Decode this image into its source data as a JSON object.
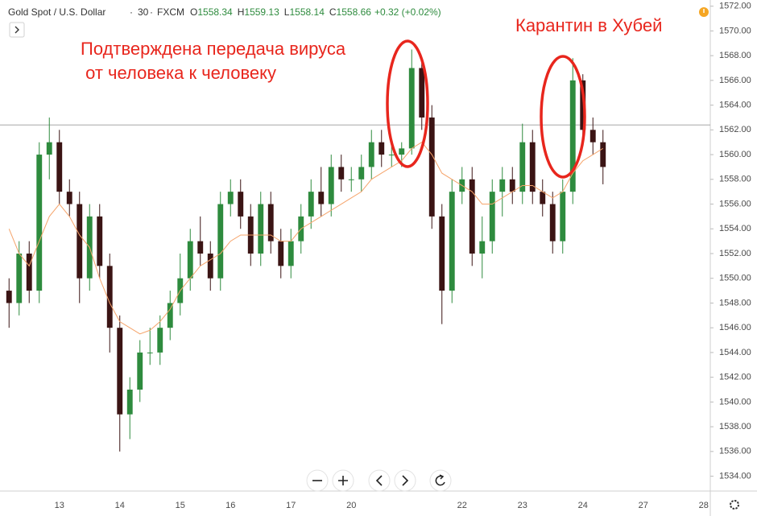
{
  "chart_data": {
    "type": "candlestick",
    "title": "Gold Spot / U.S. Dollar",
    "interval": "30",
    "source": "FXCM",
    "header_values": [
      {
        "key": "O",
        "value": 1558.34
      },
      {
        "key": "H",
        "value": 1559.13
      },
      {
        "key": "L",
        "value": 1558.14
      },
      {
        "key": "C",
        "value": 1558.66
      }
    ],
    "change": "+0.32 (+0.02%)",
    "annotations": [
      {
        "lines": [
          "Подтверждена передача вируса",
          " от человека к человеку"
        ],
        "color": "#e8261d"
      },
      {
        "lines": [
          "Карантин в Хубей"
        ],
        "color": "#e8261d"
      }
    ],
    "categories": [
      null,
      null,
      null,
      null,
      null,
      "13",
      null,
      null,
      null,
      null,
      null,
      "14",
      null,
      null,
      null,
      null,
      null,
      "15",
      null,
      null,
      null,
      null,
      "16",
      null,
      null,
      null,
      null,
      null,
      "17",
      null,
      null,
      null,
      null,
      null,
      "20",
      null,
      null,
      null,
      null,
      null,
      null,
      null,
      null,
      null,
      null,
      "22",
      null,
      null,
      null,
      null,
      null,
      "23",
      null,
      null,
      null,
      null,
      null,
      "24",
      null,
      null,
      null,
      null,
      null,
      "27",
      null,
      null,
      null,
      null,
      null,
      "28"
    ],
    "open": [
      1549,
      1548,
      1552,
      1549,
      1560,
      1561,
      1557,
      1556,
      1550,
      1555,
      1551,
      1546,
      1539,
      1541,
      1544,
      1544,
      1546,
      1548,
      1550,
      1553,
      1552,
      1550,
      1556,
      1557,
      1555,
      1552,
      1556,
      1553,
      1551,
      1553,
      1555,
      1557,
      1556,
      1559,
      1558,
      1558,
      1559,
      1561,
      1560,
      1560,
      1560.5,
      1567,
      1563,
      1555,
      1549,
      1557,
      1558,
      1552,
      1553,
      1557,
      1558,
      1557,
      1561,
      1557,
      1556,
      1553,
      1557,
      1566,
      1562,
      1561,
      null,
      null,
      null,
      null,
      null,
      null,
      null,
      null,
      null,
      null
    ],
    "high": [
      1550,
      1553,
      1553,
      1561,
      1563,
      1562,
      1558,
      1557,
      1556,
      1556,
      1552,
      1547,
      1542,
      1545,
      1546,
      1547,
      1549,
      1552,
      1554,
      1555,
      1553,
      1557,
      1558,
      1558,
      1556,
      1557,
      1557,
      1554,
      1554,
      1556,
      1558,
      1559,
      1560,
      1560,
      1559,
      1560,
      1562,
      1562,
      1561,
      1561,
      1568.5,
      1567.5,
      1564,
      1556,
      1558,
      1559,
      1559,
      1555,
      1558,
      1559,
      1559,
      1562.5,
      1562,
      1558,
      1557,
      1558,
      1567.8,
      1566.5,
      1563,
      1562,
      null,
      null,
      null,
      null,
      null,
      null,
      null,
      null,
      null,
      null
    ],
    "low": [
      1546,
      1547,
      1548,
      1548,
      1558,
      1556,
      1555,
      1548,
      1549,
      1550,
      1544,
      1536,
      1537,
      1540,
      1543,
      1543,
      1545,
      1547,
      1549,
      1551,
      1549,
      1549,
      1555,
      1554,
      1551,
      1551,
      1552,
      1550,
      1550,
      1552,
      1554,
      1555,
      1555,
      1557,
      1557,
      1557,
      1558,
      1559,
      1559,
      1559,
      1560,
      1562,
      1554,
      1546.3,
      1548,
      1556,
      1551,
      1550,
      1552,
      1555,
      1556,
      1556,
      1556,
      1555,
      1552,
      1552,
      1556,
      1561,
      1560,
      1557.6,
      null,
      null,
      null,
      null,
      null,
      null,
      null,
      null,
      null,
      null
    ],
    "close": [
      1548,
      1552,
      1549,
      1560,
      1561,
      1557,
      1556,
      1550,
      1555,
      1551,
      1546,
      1539,
      1541,
      1544,
      1544,
      1546,
      1548,
      1550,
      1553,
      1552,
      1550,
      1556,
      1557,
      1555,
      1552,
      1556,
      1553,
      1551,
      1553,
      1555,
      1557,
      1556,
      1559,
      1558,
      1558,
      1559,
      1561,
      1560,
      1560,
      1560.5,
      1567,
      1563,
      1555,
      1549,
      1557,
      1558,
      1552,
      1553,
      1557,
      1558,
      1557,
      1561,
      1557,
      1556,
      1553,
      1557,
      1566,
      1562,
      1561,
      1559,
      null,
      null,
      null,
      null,
      null,
      null,
      null,
      null,
      null,
      null
    ],
    "up_color": "#2e8b3e",
    "down_color": "#3b1414",
    "moving_average": {
      "color": "#f5a46b",
      "values": [
        1554,
        1552,
        1551,
        1553,
        1555,
        1556,
        1555,
        1553.5,
        1552.5,
        1550,
        1548,
        1546.5,
        1546,
        1545.5,
        1545.8,
        1546.5,
        1547.5,
        1549,
        1550,
        1551,
        1551.5,
        1552,
        1553,
        1553.5,
        1553.5,
        1553.5,
        1553.5,
        1553,
        1553,
        1554,
        1554.5,
        1555,
        1555.5,
        1556,
        1556.5,
        1557,
        1558,
        1558.5,
        1559,
        1559.5,
        1560.5,
        1561,
        1560,
        1558.5,
        1558,
        1557.5,
        1557,
        1556,
        1556,
        1556.5,
        1557,
        1557.5,
        1557.5,
        1557,
        1556.5,
        1557,
        1558.5,
        1559.5,
        1560,
        1560.5,
        null,
        null,
        null,
        null,
        null,
        null,
        null,
        null,
        null,
        null
      ]
    },
    "price_line": 1562.4,
    "ylim": [
      1532.8,
      1572.5
    ],
    "yticks": [
      {
        "value": 1534,
        "label": "1534.00"
      },
      {
        "value": 1536,
        "label": "1536.00"
      },
      {
        "value": 1538,
        "label": "1538.00"
      },
      {
        "value": 1540,
        "label": "1540.00"
      },
      {
        "value": 1542,
        "label": "1542.00"
      },
      {
        "value": 1544,
        "label": "1544.00"
      },
      {
        "value": 1546,
        "label": "1546.00"
      },
      {
        "value": 1548,
        "label": "1548.00"
      },
      {
        "value": 1550,
        "label": "1550.00"
      },
      {
        "value": 1552,
        "label": "1552.00"
      },
      {
        "value": 1554,
        "label": "1554.00"
      },
      {
        "value": 1556,
        "label": "1556.00"
      },
      {
        "value": 1558,
        "label": "1558.00"
      },
      {
        "value": 1560,
        "label": "1560.00"
      },
      {
        "value": 1562,
        "label": "1562.00"
      },
      {
        "value": 1564,
        "label": "1564.00"
      },
      {
        "value": 1566,
        "label": "1566.00"
      },
      {
        "value": 1568,
        "label": "1568.00"
      },
      {
        "value": 1570,
        "label": "1570.00"
      },
      {
        "value": 1572,
        "label": "1572.00"
      }
    ],
    "grid": false
  }
}
